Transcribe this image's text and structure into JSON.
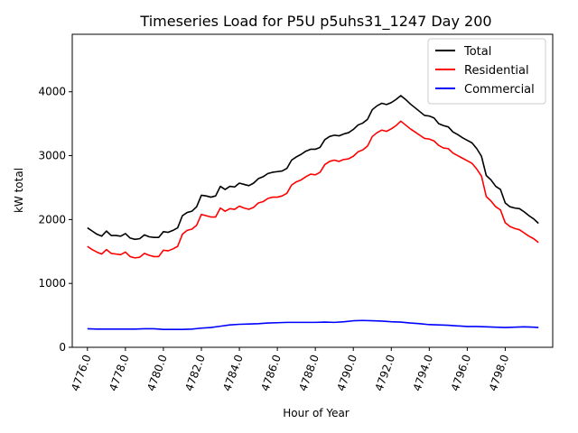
{
  "chart_data": {
    "type": "line",
    "title": "Timeseries Load for P5U p5uhs31_1247  Day 200",
    "xlabel": "Hour of Year",
    "ylabel": "kW total",
    "xlim": [
      4775.2,
      4800.5
    ],
    "ylim": [
      0,
      4900
    ],
    "x_ticks": [
      4776,
      4778,
      4780,
      4782,
      4784,
      4786,
      4788,
      4790,
      4792,
      4794,
      4796,
      4798
    ],
    "x_tick_labels": [
      "4776.0",
      "4778.0",
      "4780.0",
      "4782.0",
      "4784.0",
      "4786.0",
      "4788.0",
      "4790.0",
      "4792.0",
      "4794.0",
      "4796.0",
      "4798.0"
    ],
    "y_ticks": [
      0,
      1000,
      2000,
      3000,
      4000
    ],
    "y_tick_labels": [
      "0",
      "1000",
      "2000",
      "3000",
      "4000"
    ],
    "legend_position": "top-right",
    "grid": false,
    "series": [
      {
        "name": "Total",
        "color": "#000000",
        "points": [
          [
            4776.0,
            1870
          ],
          [
            4776.25,
            1820
          ],
          [
            4776.5,
            1770
          ],
          [
            4776.75,
            1740
          ],
          [
            4777.0,
            1820
          ],
          [
            4777.25,
            1750
          ],
          [
            4777.5,
            1750
          ],
          [
            4777.75,
            1740
          ],
          [
            4778.0,
            1780
          ],
          [
            4778.25,
            1710
          ],
          [
            4778.5,
            1690
          ],
          [
            4778.75,
            1700
          ],
          [
            4779.0,
            1760
          ],
          [
            4779.25,
            1730
          ],
          [
            4779.5,
            1720
          ],
          [
            4779.75,
            1720
          ],
          [
            4780.0,
            1810
          ],
          [
            4780.25,
            1800
          ],
          [
            4780.5,
            1830
          ],
          [
            4780.75,
            1870
          ],
          [
            4781.0,
            2060
          ],
          [
            4781.25,
            2110
          ],
          [
            4781.5,
            2130
          ],
          [
            4781.75,
            2200
          ],
          [
            4782.0,
            2380
          ],
          [
            4782.25,
            2370
          ],
          [
            4782.5,
            2350
          ],
          [
            4782.75,
            2370
          ],
          [
            4783.0,
            2520
          ],
          [
            4783.25,
            2470
          ],
          [
            4783.5,
            2520
          ],
          [
            4783.75,
            2510
          ],
          [
            4784.0,
            2570
          ],
          [
            4784.25,
            2550
          ],
          [
            4784.5,
            2530
          ],
          [
            4784.75,
            2570
          ],
          [
            4785.0,
            2640
          ],
          [
            4785.25,
            2670
          ],
          [
            4785.5,
            2720
          ],
          [
            4785.75,
            2740
          ],
          [
            4786.0,
            2750
          ],
          [
            4786.25,
            2760
          ],
          [
            4786.5,
            2800
          ],
          [
            4786.75,
            2930
          ],
          [
            4787.0,
            2980
          ],
          [
            4787.25,
            3020
          ],
          [
            4787.5,
            3070
          ],
          [
            4787.75,
            3100
          ],
          [
            4788.0,
            3100
          ],
          [
            4788.25,
            3130
          ],
          [
            4788.5,
            3250
          ],
          [
            4788.75,
            3300
          ],
          [
            4789.0,
            3320
          ],
          [
            4789.25,
            3310
          ],
          [
            4789.5,
            3340
          ],
          [
            4789.75,
            3360
          ],
          [
            4790.0,
            3410
          ],
          [
            4790.25,
            3480
          ],
          [
            4790.5,
            3510
          ],
          [
            4790.75,
            3570
          ],
          [
            4791.0,
            3720
          ],
          [
            4791.25,
            3780
          ],
          [
            4791.5,
            3820
          ],
          [
            4791.75,
            3800
          ],
          [
            4792.0,
            3830
          ],
          [
            4792.25,
            3880
          ],
          [
            4792.5,
            3940
          ],
          [
            4792.75,
            3880
          ],
          [
            4793.0,
            3810
          ],
          [
            4793.25,
            3750
          ],
          [
            4793.5,
            3690
          ],
          [
            4793.75,
            3630
          ],
          [
            4794.0,
            3620
          ],
          [
            4794.25,
            3590
          ],
          [
            4794.5,
            3500
          ],
          [
            4794.75,
            3470
          ],
          [
            4795.0,
            3450
          ],
          [
            4795.25,
            3370
          ],
          [
            4795.5,
            3330
          ],
          [
            4795.75,
            3280
          ],
          [
            4796.0,
            3240
          ],
          [
            4796.25,
            3200
          ],
          [
            4796.5,
            3110
          ],
          [
            4796.75,
            2990
          ],
          [
            4797.0,
            2690
          ],
          [
            4797.25,
            2620
          ],
          [
            4797.5,
            2520
          ],
          [
            4797.75,
            2470
          ],
          [
            4798.0,
            2260
          ],
          [
            4798.25,
            2200
          ],
          [
            4798.5,
            2180
          ],
          [
            4798.75,
            2170
          ],
          [
            4799.0,
            2120
          ],
          [
            4799.25,
            2060
          ],
          [
            4799.5,
            2010
          ],
          [
            4799.75,
            1940
          ]
        ]
      },
      {
        "name": "Residential",
        "color": "#ff0000",
        "points": [
          [
            4776.0,
            1580
          ],
          [
            4776.25,
            1530
          ],
          [
            4776.5,
            1490
          ],
          [
            4776.75,
            1460
          ],
          [
            4777.0,
            1530
          ],
          [
            4777.25,
            1470
          ],
          [
            4777.5,
            1460
          ],
          [
            4777.75,
            1450
          ],
          [
            4778.0,
            1490
          ],
          [
            4778.25,
            1420
          ],
          [
            4778.5,
            1400
          ],
          [
            4778.75,
            1410
          ],
          [
            4779.0,
            1470
          ],
          [
            4779.25,
            1440
          ],
          [
            4779.5,
            1420
          ],
          [
            4779.75,
            1420
          ],
          [
            4780.0,
            1520
          ],
          [
            4780.25,
            1510
          ],
          [
            4780.5,
            1540
          ],
          [
            4780.75,
            1580
          ],
          [
            4781.0,
            1770
          ],
          [
            4781.25,
            1830
          ],
          [
            4781.5,
            1850
          ],
          [
            4781.75,
            1910
          ],
          [
            4782.0,
            2080
          ],
          [
            4782.25,
            2060
          ],
          [
            4782.5,
            2040
          ],
          [
            4782.75,
            2040
          ],
          [
            4783.0,
            2180
          ],
          [
            4783.25,
            2130
          ],
          [
            4783.5,
            2170
          ],
          [
            4783.75,
            2160
          ],
          [
            4784.0,
            2210
          ],
          [
            4784.25,
            2180
          ],
          [
            4784.5,
            2160
          ],
          [
            4784.75,
            2190
          ],
          [
            4785.0,
            2260
          ],
          [
            4785.25,
            2280
          ],
          [
            4785.5,
            2330
          ],
          [
            4785.75,
            2350
          ],
          [
            4786.0,
            2350
          ],
          [
            4786.25,
            2370
          ],
          [
            4786.5,
            2410
          ],
          [
            4786.75,
            2540
          ],
          [
            4787.0,
            2590
          ],
          [
            4787.25,
            2620
          ],
          [
            4787.5,
            2670
          ],
          [
            4787.75,
            2710
          ],
          [
            4788.0,
            2700
          ],
          [
            4788.25,
            2740
          ],
          [
            4788.5,
            2860
          ],
          [
            4788.75,
            2910
          ],
          [
            4789.0,
            2930
          ],
          [
            4789.25,
            2910
          ],
          [
            4789.5,
            2940
          ],
          [
            4789.75,
            2950
          ],
          [
            4790.0,
            2990
          ],
          [
            4790.25,
            3060
          ],
          [
            4790.5,
            3090
          ],
          [
            4790.75,
            3150
          ],
          [
            4791.0,
            3300
          ],
          [
            4791.25,
            3360
          ],
          [
            4791.5,
            3400
          ],
          [
            4791.75,
            3380
          ],
          [
            4792.0,
            3420
          ],
          [
            4792.25,
            3470
          ],
          [
            4792.5,
            3540
          ],
          [
            4792.75,
            3480
          ],
          [
            4793.0,
            3420
          ],
          [
            4793.25,
            3370
          ],
          [
            4793.5,
            3320
          ],
          [
            4793.75,
            3270
          ],
          [
            4794.0,
            3260
          ],
          [
            4794.25,
            3230
          ],
          [
            4794.5,
            3160
          ],
          [
            4794.75,
            3120
          ],
          [
            4795.0,
            3110
          ],
          [
            4795.25,
            3040
          ],
          [
            4795.5,
            3000
          ],
          [
            4795.75,
            2960
          ],
          [
            4796.0,
            2920
          ],
          [
            4796.25,
            2880
          ],
          [
            4796.5,
            2790
          ],
          [
            4796.75,
            2680
          ],
          [
            4797.0,
            2360
          ],
          [
            4797.25,
            2290
          ],
          [
            4797.5,
            2200
          ],
          [
            4797.75,
            2150
          ],
          [
            4798.0,
            1950
          ],
          [
            4798.25,
            1890
          ],
          [
            4798.5,
            1860
          ],
          [
            4798.75,
            1840
          ],
          [
            4799.0,
            1790
          ],
          [
            4799.25,
            1740
          ],
          [
            4799.5,
            1700
          ],
          [
            4799.75,
            1640
          ]
        ]
      },
      {
        "name": "Commercial",
        "color": "#0000ff",
        "points": [
          [
            4776.0,
            290
          ],
          [
            4776.5,
            285
          ],
          [
            4777.0,
            285
          ],
          [
            4777.5,
            285
          ],
          [
            4778.0,
            285
          ],
          [
            4778.5,
            285
          ],
          [
            4779.0,
            290
          ],
          [
            4779.5,
            290
          ],
          [
            4780.0,
            280
          ],
          [
            4780.5,
            280
          ],
          [
            4781.0,
            280
          ],
          [
            4781.5,
            285
          ],
          [
            4782.0,
            300
          ],
          [
            4782.5,
            310
          ],
          [
            4783.0,
            330
          ],
          [
            4783.5,
            350
          ],
          [
            4784.0,
            360
          ],
          [
            4784.5,
            365
          ],
          [
            4785.0,
            370
          ],
          [
            4785.5,
            380
          ],
          [
            4786.0,
            385
          ],
          [
            4786.5,
            390
          ],
          [
            4787.0,
            390
          ],
          [
            4787.5,
            390
          ],
          [
            4788.0,
            390
          ],
          [
            4788.5,
            395
          ],
          [
            4789.0,
            390
          ],
          [
            4789.5,
            400
          ],
          [
            4790.0,
            415
          ],
          [
            4790.5,
            420
          ],
          [
            4791.0,
            415
          ],
          [
            4791.5,
            410
          ],
          [
            4792.0,
            400
          ],
          [
            4792.5,
            395
          ],
          [
            4793.0,
            380
          ],
          [
            4793.5,
            370
          ],
          [
            4794.0,
            355
          ],
          [
            4794.5,
            350
          ],
          [
            4795.0,
            345
          ],
          [
            4795.5,
            335
          ],
          [
            4796.0,
            325
          ],
          [
            4796.5,
            325
          ],
          [
            4797.0,
            320
          ],
          [
            4797.5,
            315
          ],
          [
            4798.0,
            310
          ],
          [
            4798.5,
            315
          ],
          [
            4799.0,
            320
          ],
          [
            4799.5,
            315
          ],
          [
            4799.75,
            310
          ]
        ]
      }
    ]
  }
}
